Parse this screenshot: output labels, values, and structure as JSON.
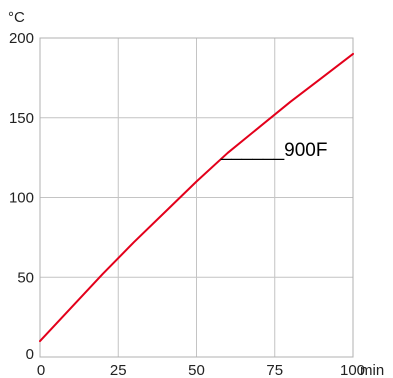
{
  "chart_data": {
    "type": "line",
    "title": "",
    "xlabel": "",
    "ylabel": "",
    "x_unit": "min",
    "y_unit": "°C",
    "xlim": [
      0,
      100
    ],
    "ylim": [
      0,
      200
    ],
    "x_ticks": [
      0,
      25,
      50,
      75,
      100
    ],
    "y_ticks": [
      0,
      50,
      100,
      150,
      200
    ],
    "x_tick_labels": [
      "0",
      "25",
      "50",
      "75",
      "100"
    ],
    "y_tick_labels": [
      "0",
      "50",
      "100",
      "150",
      "200"
    ],
    "grid": true,
    "series": [
      {
        "name": "900F",
        "color": "#e3001b",
        "x": [
          0,
          10,
          20,
          30,
          40,
          50,
          60,
          70,
          80,
          90,
          100
        ],
        "y": [
          10,
          31,
          52,
          72,
          91,
          110,
          128,
          144,
          160,
          175,
          190
        ]
      }
    ],
    "annotation": {
      "text": "______900F",
      "at_x": 75,
      "at_y": 128
    }
  }
}
